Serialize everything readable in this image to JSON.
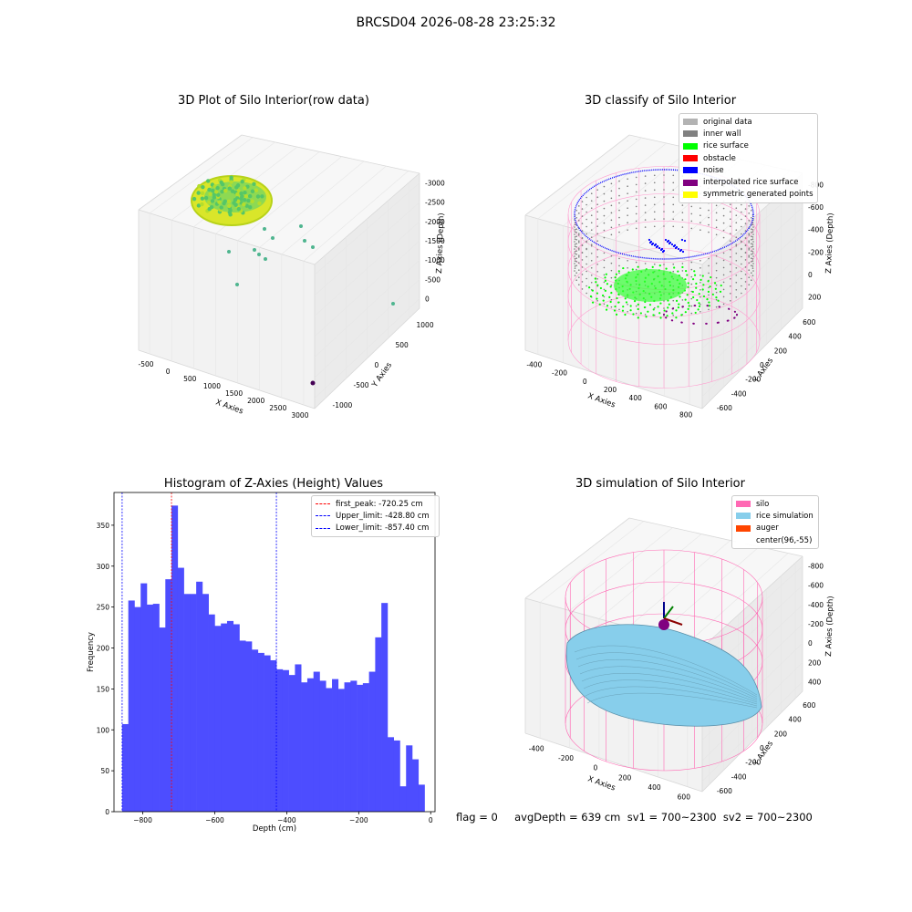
{
  "figure": {
    "suptitle": "BRCSD04 2026-08-28 23:25:32",
    "footer": "flag = 0     avgDepth = 639 cm  sv1 = 700~2300  sv2 = 700~2300"
  },
  "panels": {
    "raw": {
      "title": "3D Plot of Silo Interior(row data)",
      "xlabel": "X Axies",
      "ylabel": "Y Axies",
      "zlabel": "Z Axies (Depth)",
      "xticks": [
        "-500",
        "0",
        "500",
        "1000",
        "1500",
        "2000",
        "2500",
        "3000"
      ],
      "yticks": [
        "-1000",
        "-500",
        "0",
        "500",
        "1000"
      ],
      "zticks": [
        "0",
        "-500",
        "-1000",
        "-1500",
        "-2000",
        "-2500",
        "-3000"
      ]
    },
    "classify": {
      "title": "3D classify of Silo Interior",
      "xlabel": "X Axies",
      "ylabel": "Y Axies",
      "zlabel": "Z Axies (Depth)",
      "xticks": [
        "-400",
        "-200",
        "0",
        "200",
        "400",
        "600",
        "800"
      ],
      "yticks": [
        "-600",
        "-400",
        "-200",
        "0",
        "200",
        "400",
        "600"
      ],
      "zticks": [
        "200",
        "0",
        "-200",
        "-400",
        "-600",
        "-800"
      ],
      "legend": [
        {
          "label": "original data",
          "color": "#b3b3b3"
        },
        {
          "label": "inner wall",
          "color": "#808080"
        },
        {
          "label": "rice surface",
          "color": "#00ff00"
        },
        {
          "label": "obstacle",
          "color": "#ff0000"
        },
        {
          "label": "noise",
          "color": "#0000ff"
        },
        {
          "label": "interpolated rice surface",
          "color": "#800080"
        },
        {
          "label": "symmetric generated points",
          "color": "#ffff00"
        }
      ]
    },
    "simulation": {
      "title": "3D simulation of Silo Interior",
      "xlabel": "X Axies",
      "ylabel": "Y Axies",
      "zlabel": "Z Axies (Depth)",
      "xticks": [
        "-400",
        "-200",
        "0",
        "200",
        "400",
        "600"
      ],
      "yticks": [
        "-600",
        "-400",
        "-200",
        "0",
        "200",
        "400",
        "600"
      ],
      "zticks": [
        "400",
        "200",
        "0",
        "-200",
        "-400",
        "-600",
        "-800"
      ],
      "legend": [
        {
          "label": "silo",
          "color": "#ff69b4"
        },
        {
          "label": "rice simulation",
          "color": "#87ceeb"
        },
        {
          "label": "auger",
          "color": "#ff4500"
        },
        {
          "label": "center(96,-55)",
          "color": "#ffffff"
        }
      ]
    }
  },
  "chart_data": {
    "type": "bar",
    "title": "Histogram of Z-Axies (Height) Values",
    "xlabel": "Depth (cm)",
    "ylabel": "Frequency",
    "xlim": [
      -880,
      12
    ],
    "ylim": [
      0,
      390
    ],
    "xticks": [
      -800,
      -600,
      -400,
      -200,
      0
    ],
    "yticks": [
      0,
      50,
      100,
      150,
      200,
      250,
      300,
      350
    ],
    "bin_start": -857.4,
    "bin_width": 17.15,
    "bar_color": "#4d4dff",
    "values": [
      107,
      258,
      250,
      279,
      253,
      254,
      225,
      284,
      374,
      298,
      266,
      266,
      281,
      266,
      241,
      227,
      230,
      233,
      229,
      209,
      208,
      198,
      194,
      191,
      185,
      174,
      173,
      167,
      180,
      158,
      163,
      171,
      160,
      151,
      162,
      150,
      158,
      160,
      155,
      157,
      171,
      213,
      255,
      91,
      87,
      31,
      81,
      64,
      33
    ],
    "vlines": [
      {
        "label": "first_peak: -720.25 cm",
        "x": -720.25,
        "color": "#ff0000"
      },
      {
        "label": "Upper_limit: -428.80 cm",
        "x": -428.8,
        "color": "#0000ff"
      },
      {
        "label": "Lower_limit: -857.40 cm",
        "x": -857.4,
        "color": "#0000ff"
      }
    ]
  }
}
